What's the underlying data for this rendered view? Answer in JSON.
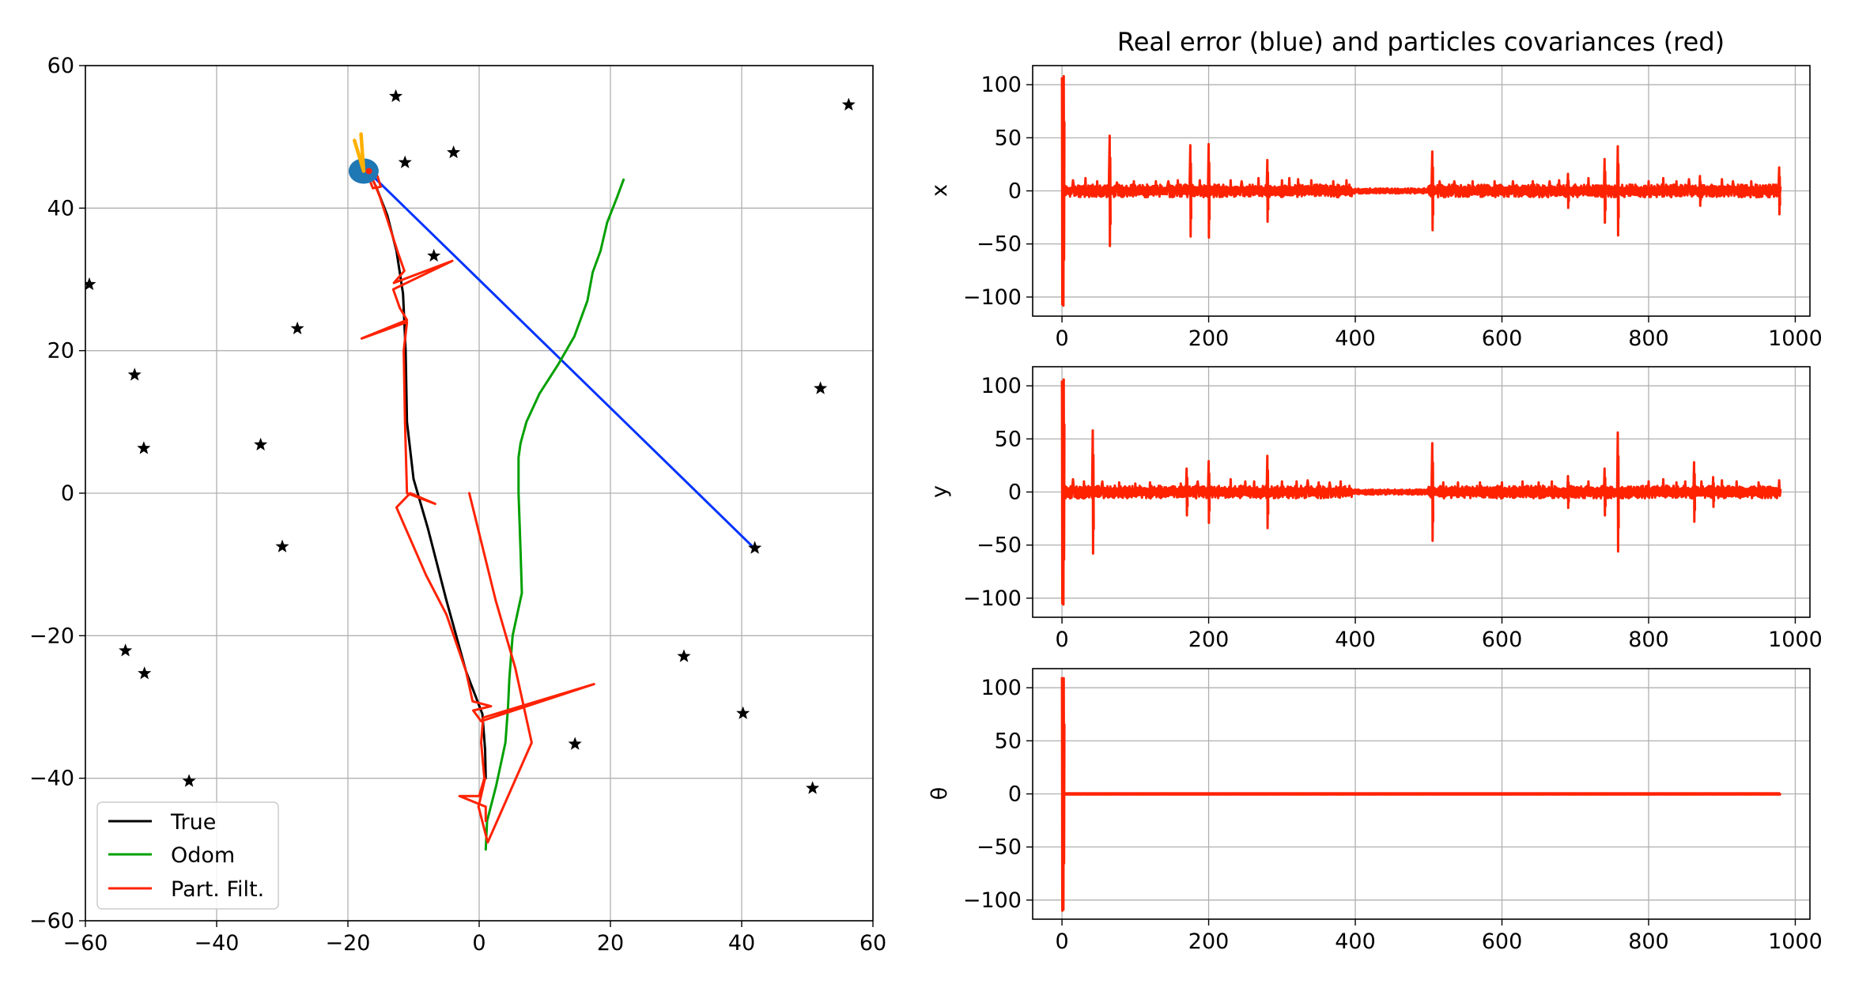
{
  "chart_data": [
    {
      "type": "line",
      "xlim": [
        -60,
        60
      ],
      "ylim": [
        -60,
        60
      ],
      "x_ticks": [
        "−60",
        "−40",
        "−20",
        "0",
        "20",
        "40",
        "60"
      ],
      "y_ticks": [
        "−60",
        "−40",
        "−20",
        "0",
        "20",
        "40",
        "60"
      ],
      "grid": true,
      "legend_position": "lower-left",
      "colors": {
        "true": "#000000",
        "odom": "#00a000",
        "pf": "#ff2200",
        "link": "#0033ff",
        "heading": "#ffb000",
        "robot": "#1f77b4",
        "landmark": "#000000"
      },
      "legend": [
        "True",
        "Odom",
        "Part. Filt."
      ],
      "landmarks": [
        [
          -12.7,
          55.7
        ],
        [
          -11.3,
          46.4
        ],
        [
          -3.9,
          47.8
        ],
        [
          56.3,
          54.5
        ],
        [
          -59.4,
          29.3
        ],
        [
          -6.9,
          33.3
        ],
        [
          -27.7,
          23.1
        ],
        [
          -52.5,
          16.6
        ],
        [
          52.0,
          14.7
        ],
        [
          -51.1,
          6.3
        ],
        [
          -33.3,
          6.8
        ],
        [
          -30.0,
          -7.5
        ],
        [
          42.0,
          -7.7
        ],
        [
          -53.9,
          -22.1
        ],
        [
          -51.0,
          -25.3
        ],
        [
          31.2,
          -22.9
        ],
        [
          40.2,
          -30.9
        ],
        [
          14.6,
          -35.2
        ],
        [
          -44.2,
          -40.4
        ],
        [
          50.8,
          -41.4
        ]
      ],
      "series": [
        {
          "name": "True",
          "points": [
            [
              1,
              -40
            ],
            [
              0.9,
              -36
            ],
            [
              0.5,
              -31
            ],
            [
              -2,
              -25
            ],
            [
              -5,
              -15
            ],
            [
              -7.8,
              -5
            ],
            [
              -10,
              2
            ],
            [
              -11,
              10
            ],
            [
              -11.2,
              20
            ],
            [
              -11.6,
              28
            ],
            [
              -12.6,
              34
            ],
            [
              -14,
              39
            ],
            [
              -15.7,
              43
            ],
            [
              -16.8,
              45
            ]
          ]
        },
        {
          "name": "Odom",
          "points": [
            [
              1,
              -50
            ],
            [
              1.2,
              -46
            ],
            [
              2.6,
              -41
            ],
            [
              4,
              -35
            ],
            [
              4.4,
              -30
            ],
            [
              4.6,
              -26
            ],
            [
              5.1,
              -20
            ],
            [
              6.5,
              -14
            ],
            [
              6.3,
              -8
            ],
            [
              6,
              0
            ],
            [
              6,
              5
            ],
            [
              6.3,
              7
            ],
            [
              7.2,
              10
            ],
            [
              9.2,
              14
            ],
            [
              12,
              18
            ],
            [
              14.5,
              22
            ],
            [
              16.5,
              27
            ],
            [
              17.3,
              31
            ],
            [
              18.5,
              34
            ],
            [
              19.5,
              38
            ],
            [
              21,
              41.5
            ],
            [
              22,
              44
            ]
          ]
        },
        {
          "name": "Part. Filt.",
          "points": [
            [
              1,
              -46
            ],
            [
              1,
              -44
            ],
            [
              -3,
              -42.5
            ],
            [
              0,
              -42.5
            ],
            [
              0.8,
              -40
            ],
            [
              0.3,
              -35
            ],
            [
              0.6,
              -31.5
            ],
            [
              17.5,
              -26.8
            ],
            [
              0.3,
              -32
            ],
            [
              -0.9,
              -30.5
            ],
            [
              1.8,
              -29.9
            ],
            [
              -1,
              -29.2
            ],
            [
              -2,
              -25
            ],
            [
              -5,
              -17
            ],
            [
              -8.1,
              -11.5
            ],
            [
              -12.6,
              -2
            ],
            [
              -10.5,
              0
            ],
            [
              -6.7,
              -1.5
            ],
            [
              -11,
              0
            ],
            [
              -11.3,
              10
            ],
            [
              -11.5,
              20
            ],
            [
              -11,
              24
            ],
            [
              -17.9,
              21.7
            ],
            [
              -11,
              24.3
            ],
            [
              -12.1,
              26
            ],
            [
              -13.1,
              28.6
            ],
            [
              -10.4,
              29.8
            ],
            [
              -4.1,
              32.6
            ],
            [
              -13,
              29.5
            ],
            [
              -11.4,
              31.2
            ],
            [
              -12.4,
              33.8
            ],
            [
              -13.5,
              37
            ],
            [
              -14.2,
              39
            ],
            [
              -15.1,
              41.5
            ],
            [
              -16,
              43.6
            ],
            [
              -16.8,
              45
            ],
            [
              -15.5,
              44.5
            ],
            [
              -15,
              43
            ],
            [
              -16.2,
              42.8
            ],
            [
              -17,
              44.7
            ]
          ]
        },
        {
          "name": "Part. Filt. excursion",
          "points": [
            [
              -1.5,
              0
            ],
            [
              2.5,
              -15
            ],
            [
              5.5,
              -24.5
            ],
            [
              8,
              -35
            ],
            [
              1.3,
              -49
            ],
            [
              -0.1,
              -44
            ],
            [
              0.9,
              -40
            ]
          ]
        },
        {
          "name": "link",
          "points": [
            [
              -17,
              45.2
            ],
            [
              42,
              -7.8
            ]
          ]
        }
      ],
      "robot": {
        "x": -17.6,
        "y": 45.2,
        "heading_tip": [
          [
            -19,
            49.5
          ],
          [
            -18,
            50.4
          ]
        ]
      }
    },
    {
      "type": "line",
      "title": "Real error (blue) and particles covariances (red)",
      "ylabel": "x",
      "xlim": [
        -40,
        1020
      ],
      "ylim": [
        -118,
        118
      ],
      "x_ticks": [
        "0",
        "200",
        "400",
        "600",
        "800",
        "1000"
      ],
      "y_ticks": [
        "−100",
        "−50",
        "0",
        "50",
        "100"
      ],
      "grid": true,
      "n": 980,
      "red_bursts": [
        [
          0,
          107
        ],
        [
          2,
          -108
        ],
        [
          15,
          10
        ],
        [
          32,
          12
        ],
        [
          48,
          9
        ],
        [
          65,
          52
        ],
        [
          75,
          8
        ],
        [
          98,
          9
        ],
        [
          128,
          9
        ],
        [
          145,
          9
        ],
        [
          158,
          10
        ],
        [
          175,
          43
        ],
        [
          188,
          10
        ],
        [
          200,
          44
        ],
        [
          230,
          10
        ],
        [
          245,
          9
        ],
        [
          268,
          12
        ],
        [
          280,
          29
        ],
        [
          300,
          10
        ],
        [
          310,
          12
        ],
        [
          322,
          11
        ],
        [
          340,
          10
        ],
        [
          370,
          9
        ],
        [
          388,
          10
        ],
        [
          505,
          37
        ],
        [
          515,
          9
        ],
        [
          535,
          9
        ],
        [
          560,
          9
        ],
        [
          590,
          9
        ],
        [
          615,
          9
        ],
        [
          642,
          9
        ],
        [
          665,
          9
        ],
        [
          678,
          10
        ],
        [
          690,
          16
        ],
        [
          718,
          12
        ],
        [
          740,
          30
        ],
        [
          758,
          42
        ],
        [
          800,
          9
        ],
        [
          820,
          12
        ],
        [
          838,
          9
        ],
        [
          855,
          11
        ],
        [
          870,
          14
        ],
        [
          900,
          11
        ],
        [
          915,
          9
        ],
        [
          940,
          9
        ],
        [
          978,
          22
        ]
      ]
    },
    {
      "type": "line",
      "ylabel": "y",
      "xlim": [
        -40,
        1020
      ],
      "ylim": [
        -118,
        118
      ],
      "x_ticks": [
        "0",
        "200",
        "400",
        "600",
        "800",
        "1000"
      ],
      "y_ticks": [
        "−100",
        "−50",
        "0",
        "50",
        "100"
      ],
      "grid": true,
      "n": 980,
      "red_bursts": [
        [
          0,
          105
        ],
        [
          2,
          -106
        ],
        [
          15,
          12
        ],
        [
          30,
          10
        ],
        [
          42,
          58
        ],
        [
          55,
          10
        ],
        [
          78,
          9
        ],
        [
          100,
          8
        ],
        [
          120,
          9
        ],
        [
          162,
          8
        ],
        [
          170,
          22
        ],
        [
          185,
          10
        ],
        [
          200,
          29
        ],
        [
          230,
          12
        ],
        [
          250,
          10
        ],
        [
          262,
          10
        ],
        [
          280,
          34
        ],
        [
          300,
          10
        ],
        [
          320,
          10
        ],
        [
          335,
          11
        ],
        [
          350,
          9
        ],
        [
          365,
          9
        ],
        [
          380,
          10
        ],
        [
          505,
          46
        ],
        [
          520,
          9
        ],
        [
          540,
          9
        ],
        [
          570,
          9
        ],
        [
          600,
          9
        ],
        [
          628,
          10
        ],
        [
          650,
          9
        ],
        [
          668,
          10
        ],
        [
          690,
          15
        ],
        [
          718,
          10
        ],
        [
          740,
          22
        ],
        [
          758,
          56
        ],
        [
          800,
          10
        ],
        [
          820,
          12
        ],
        [
          838,
          9
        ],
        [
          850,
          10
        ],
        [
          862,
          28
        ],
        [
          872,
          10
        ],
        [
          888,
          14
        ],
        [
          900,
          11
        ],
        [
          920,
          10
        ],
        [
          950,
          9
        ],
        [
          978,
          11
        ]
      ]
    },
    {
      "type": "line",
      "ylabel": "θ",
      "xlim": [
        -40,
        1020
      ],
      "ylim": [
        -118,
        118
      ],
      "x_ticks": [
        "0",
        "200",
        "400",
        "600",
        "800",
        "1000"
      ],
      "y_ticks": [
        "−100",
        "−50",
        "0",
        "50",
        "100"
      ],
      "grid": true,
      "n": 980,
      "red_bursts": [
        [
          0,
          110
        ],
        [
          2,
          -109
        ]
      ]
    }
  ]
}
